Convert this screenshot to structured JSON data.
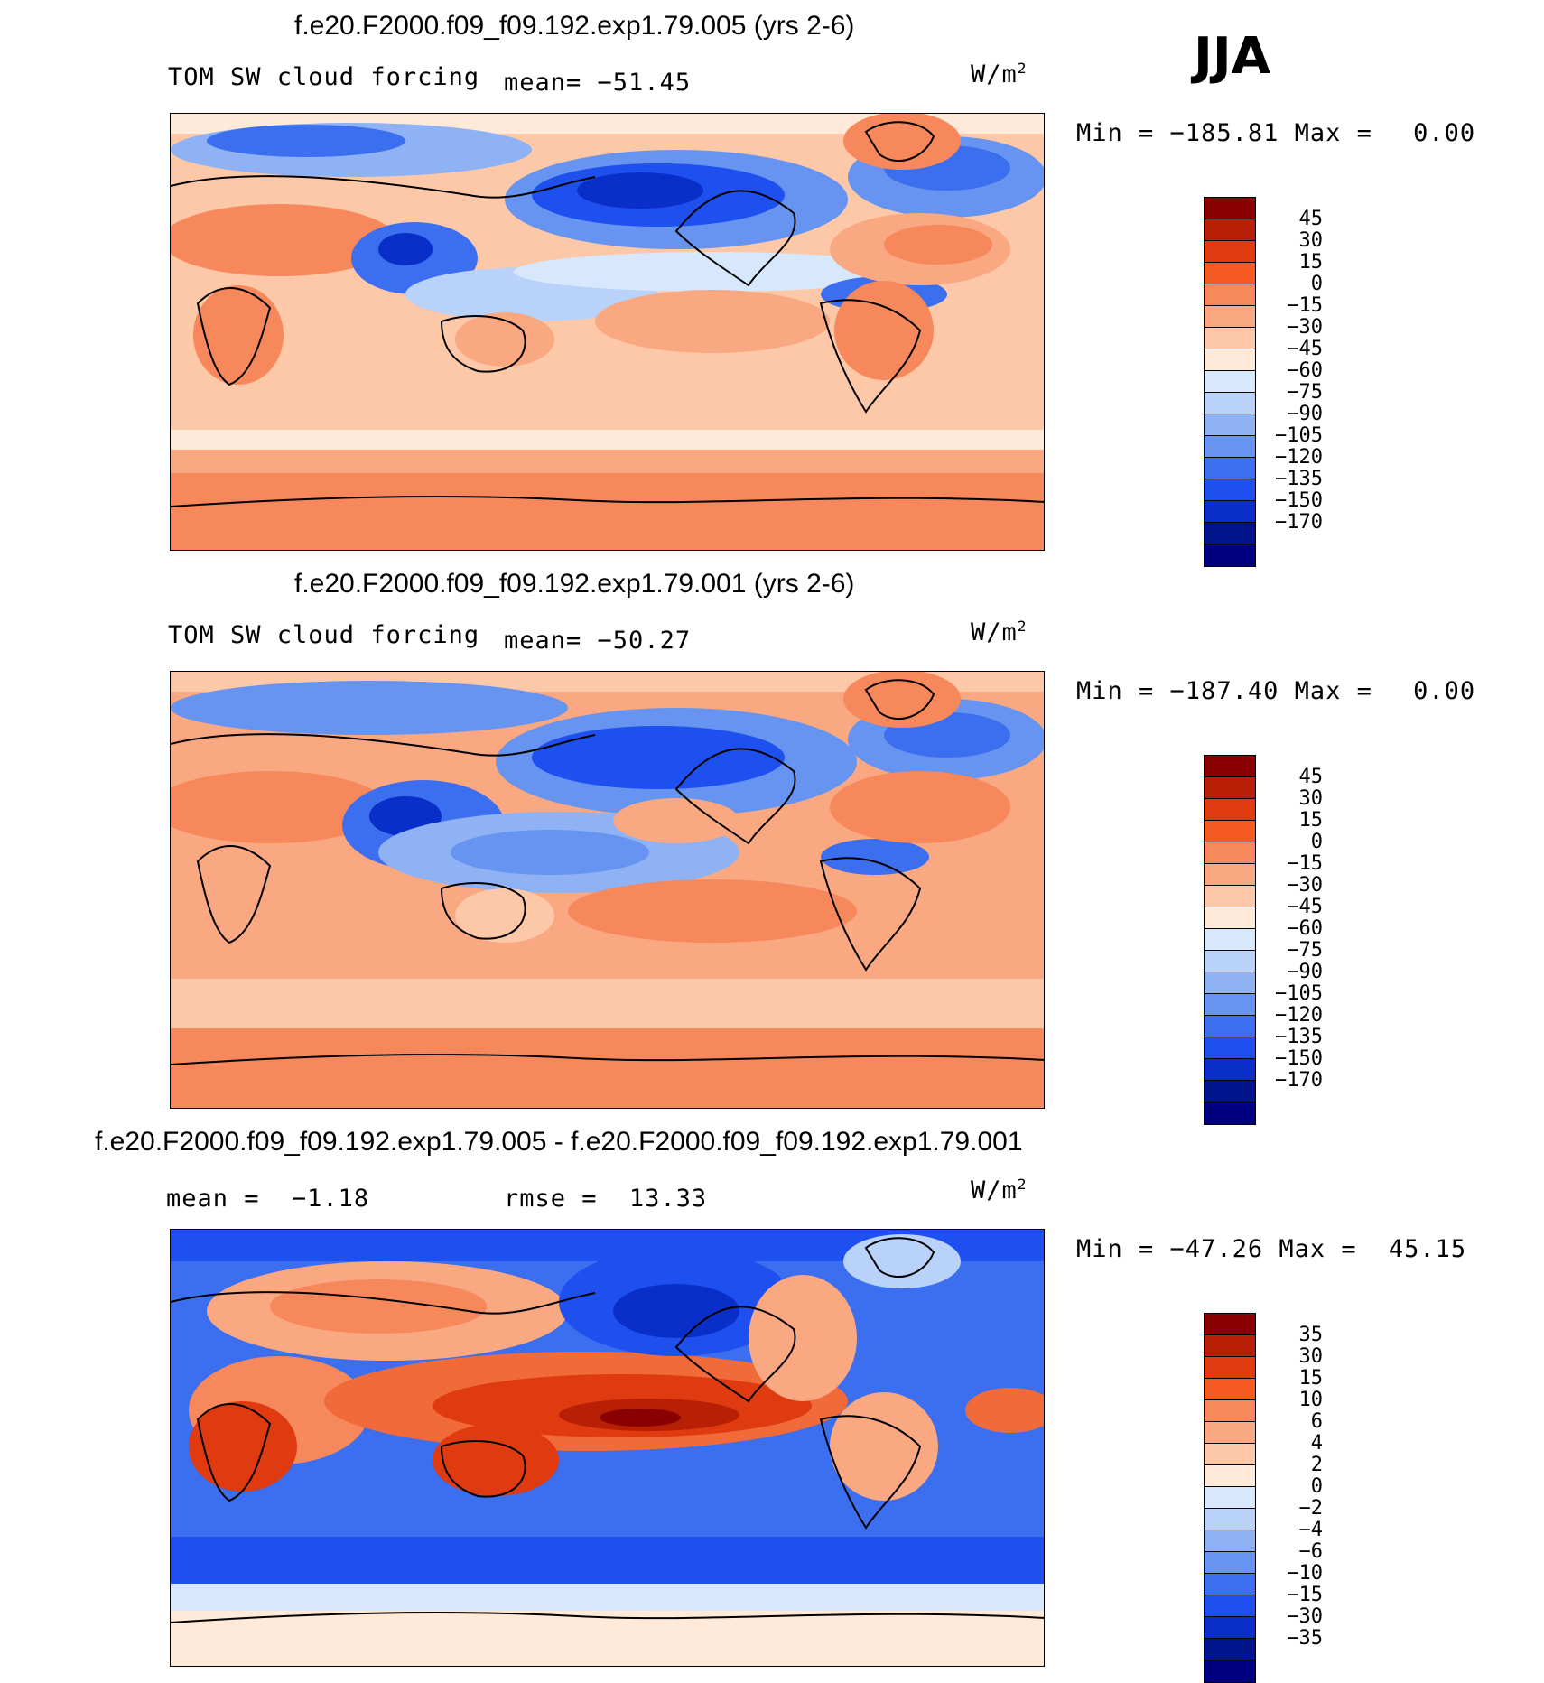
{
  "season": "JJA",
  "colors": {
    "cool_palette": [
      "#000080",
      "#00148c",
      "#0a2fc8",
      "#1e50f0",
      "#3c6ef0",
      "#6694f0",
      "#8fb2f5",
      "#b8d2fa",
      "#d8e8fc",
      "#ffe9d8",
      "#fcc8a8",
      "#f9a882",
      "#f6885c",
      "#f06a3a",
      "#e04418",
      "#b82006",
      "#8a0000"
    ],
    "legend_top_to_bottom": [
      "#8a0000",
      "#b82006",
      "#e03a10",
      "#f45a22",
      "#f6885c",
      "#f9a882",
      "#fcc8a8",
      "#ffe9d8",
      "#d8e8fc",
      "#b8d2fa",
      "#8fb2f5",
      "#6694f0",
      "#3c6ef0",
      "#1e50f0",
      "#0a2fc8",
      "#00148c",
      "#000080"
    ]
  },
  "panels": [
    {
      "title": "f.e20.F2000.f09_f09.192.exp1.79.005 (yrs 2-6)",
      "left_label": "TOM SW cloud forcing",
      "mean_label": "mean=",
      "mean_value": "−51.45",
      "units": "W/m",
      "units_sup": "2",
      "min_label": "Min =",
      "min_value": "−185.81",
      "max_label": "Max =",
      "max_value": "0.00",
      "legend_ticks": [
        "45",
        "30",
        "15",
        "0",
        "−15",
        "−30",
        "−45",
        "−60",
        "−75",
        "−90",
        "−105",
        "−120",
        "−135",
        "−150",
        "−170"
      ]
    },
    {
      "title": "f.e20.F2000.f09_f09.192.exp1.79.001 (yrs 2-6)",
      "left_label": "TOM SW cloud forcing",
      "mean_label": "mean=",
      "mean_value": "−50.27",
      "units": "W/m",
      "units_sup": "2",
      "min_label": "Min =",
      "min_value": "−187.40",
      "max_label": "Max =",
      "max_value": "0.00",
      "legend_ticks": [
        "45",
        "30",
        "15",
        "0",
        "−15",
        "−30",
        "−45",
        "−60",
        "−75",
        "−90",
        "−105",
        "−120",
        "−135",
        "−150",
        "−170"
      ]
    },
    {
      "title": "f.e20.F2000.f09_f09.192.exp1.79.005 - f.e20.F2000.f09_f09.192.exp1.79.001",
      "left_label": "mean =",
      "mean_label": "",
      "left_value": "−1.18",
      "rmse_label": "rmse =",
      "rmse_value": "13.33",
      "units": "W/m",
      "units_sup": "2",
      "min_label": "Min =",
      "min_value": "−47.26",
      "max_label": "Max =",
      "max_value": "45.15",
      "legend_ticks": [
        "35",
        "30",
        "15",
        "10",
        "6",
        "4",
        "2",
        "0",
        "−2",
        "−4",
        "−6",
        "−10",
        "−15",
        "−30",
        "−35"
      ]
    }
  ]
}
